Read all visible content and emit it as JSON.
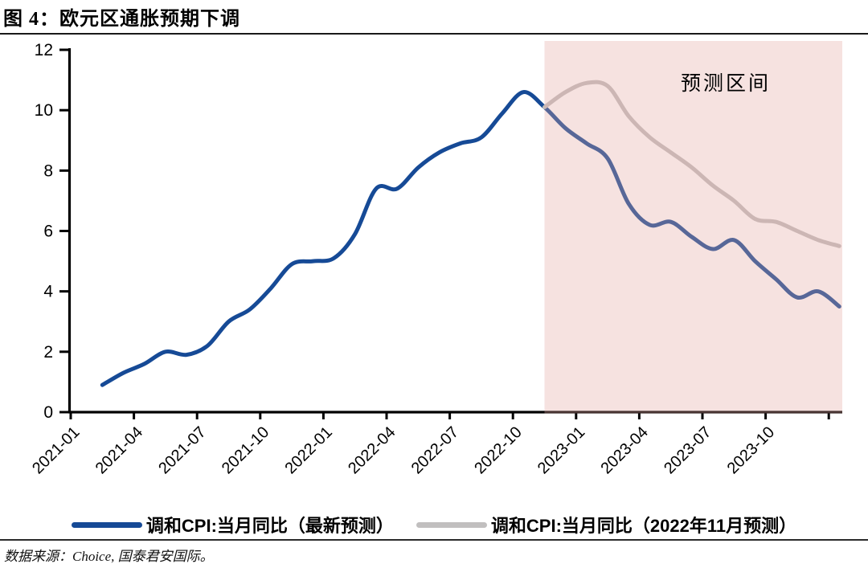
{
  "header": {
    "title": "图 4：欧元区通胀预期下调"
  },
  "legend": {
    "items": [
      {
        "label": "调和CPI:当月同比（最新预测）",
        "color": "#164A96"
      },
      {
        "label": "调和CPI:当月同比（2022年11月预测）",
        "color": "#C1BFBF"
      }
    ]
  },
  "footer": {
    "source": "数据来源：Choice, 国泰君安国际。"
  },
  "chart_data": {
    "type": "line",
    "title": "图 4：欧元区通胀预期下调",
    "xlabel": "",
    "ylabel": "",
    "ylim": [
      0,
      12
    ],
    "y_ticks": [
      0,
      2,
      4,
      6,
      8,
      10,
      12
    ],
    "x_tick_labels": [
      "2021-01",
      "2021-04",
      "2021-07",
      "2021-10",
      "2022-01",
      "2022-04",
      "2022-07",
      "2022-10",
      "2023-01",
      "2023-04",
      "2023-07",
      "2023-10"
    ],
    "x_base_month": "2021-01",
    "x_axis_end_month": "2024-01",
    "grid": false,
    "legend_position": "bottom",
    "series": [
      {
        "name": "调和CPI:当月同比（最新预测）",
        "color": "#164A96",
        "start_month": "2021-02",
        "frequency": "monthly",
        "values": [
          0.9,
          1.3,
          1.6,
          2.0,
          1.9,
          2.2,
          3.0,
          3.4,
          4.1,
          4.9,
          5.0,
          5.1,
          5.9,
          7.4,
          7.4,
          8.1,
          8.6,
          8.9,
          9.1,
          9.9,
          10.6,
          10.1,
          9.4,
          8.9,
          8.4,
          6.9,
          6.2,
          6.3,
          5.8,
          5.4,
          5.7,
          5.0,
          4.4,
          3.8,
          4.0,
          3.5
        ]
      },
      {
        "name": "调和CPI:当月同比（2022年11月预测）",
        "color": "#C1BFBF",
        "start_month": "2022-11",
        "frequency": "monthly",
        "values": [
          10.1,
          10.6,
          10.9,
          10.8,
          9.8,
          9.1,
          8.6,
          8.1,
          7.5,
          7.0,
          6.4,
          6.3,
          6.0,
          5.7,
          5.5
        ]
      }
    ],
    "forecast_region": {
      "label": "预测区间",
      "start_month": "2022-12",
      "fill": "rgba(226,165,158,0.32)"
    }
  }
}
